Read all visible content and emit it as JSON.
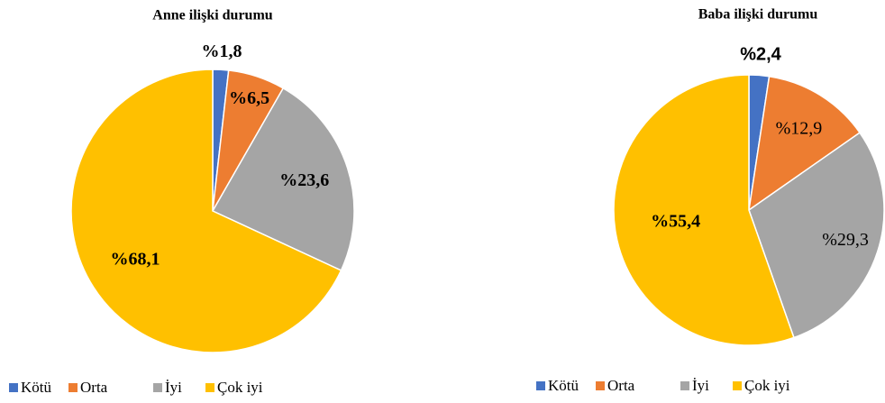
{
  "chart_data": [
    {
      "type": "pie",
      "title": "Anne ilişki durumu",
      "categories": [
        "Kötü",
        "Orta",
        "İyi",
        "Çok iyi"
      ],
      "values": [
        1.8,
        6.5,
        23.6,
        68.1
      ],
      "value_labels": [
        "%1,8",
        "%6,5",
        "%23,6",
        "%68,1"
      ],
      "colors": [
        "#4472c4",
        "#ed7d31",
        "#a5a5a5",
        "#ffc000"
      ],
      "legend": "bottom"
    },
    {
      "type": "pie",
      "title": "Baba ilişki durumu",
      "categories": [
        "Kötü",
        "Orta",
        "İyi",
        "Çok iyi"
      ],
      "values": [
        2.4,
        12.9,
        29.3,
        55.4
      ],
      "value_labels": [
        "%2,4",
        "%12,9",
        "%29,3",
        "%55,4"
      ],
      "colors": [
        "#4472c4",
        "#ed7d31",
        "#a5a5a5",
        "#ffc000"
      ],
      "legend": "bottom"
    }
  ]
}
